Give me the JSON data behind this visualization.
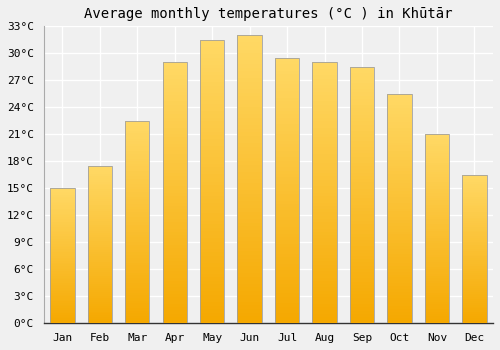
{
  "title": "Average monthly temperatures (°C ) in Khūtār",
  "months": [
    "Jan",
    "Feb",
    "Mar",
    "Apr",
    "May",
    "Jun",
    "Jul",
    "Aug",
    "Sep",
    "Oct",
    "Nov",
    "Dec"
  ],
  "temperatures": [
    15.0,
    17.5,
    22.5,
    29.0,
    31.5,
    32.0,
    29.5,
    29.0,
    28.5,
    25.5,
    21.0,
    16.5
  ],
  "bar_color_bottom": "#F5A800",
  "bar_color_top": "#FFD966",
  "bar_edge_color": "#A0A0A0",
  "ylim": [
    0,
    33
  ],
  "yticks": [
    0,
    3,
    6,
    9,
    12,
    15,
    18,
    21,
    24,
    27,
    30,
    33
  ],
  "ytick_labels": [
    "0°C",
    "3°C",
    "6°C",
    "9°C",
    "12°C",
    "15°C",
    "18°C",
    "21°C",
    "24°C",
    "27°C",
    "30°C",
    "33°C"
  ],
  "background_color": "#f0f0f0",
  "plot_bg_color": "#f0f0f0",
  "grid_color": "#ffffff",
  "title_fontsize": 10,
  "tick_fontsize": 8,
  "bar_width": 0.65
}
